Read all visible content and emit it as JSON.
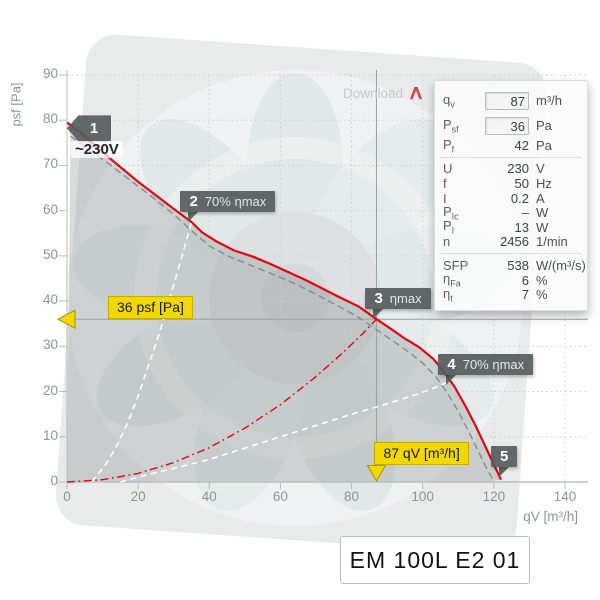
{
  "download": {
    "label": "Download"
  },
  "model_label": "EM 100L E2 01",
  "colors": {
    "curve_red": "#e30613",
    "reference_gray": "#8b8f8f",
    "handle_yellow": "#f2d802",
    "marker_tag_gray": "#565b5b",
    "pdf_icon_red": "#cc2229"
  },
  "panel": {
    "rows": [
      {
        "id": "qv",
        "label": "q",
        "sub": "v",
        "value": "87",
        "unit": "m³/h",
        "input": true,
        "sep_after": false
      },
      {
        "id": "psf",
        "label": "P",
        "sub": "sf",
        "value": "36",
        "unit": "Pa",
        "input": true,
        "sep_after": false
      },
      {
        "id": "pf",
        "label": "P",
        "sub": "f",
        "value": "42",
        "unit": "Pa",
        "input": false,
        "sep_after": true
      },
      {
        "id": "u",
        "label": "U",
        "sub": "",
        "value": "230",
        "unit": "V",
        "input": false,
        "sep_after": false
      },
      {
        "id": "f",
        "label": "f",
        "sub": "",
        "value": "50",
        "unit": "Hz",
        "input": false,
        "sep_after": false
      },
      {
        "id": "i",
        "label": "I",
        "sub": "",
        "value": "0.2",
        "unit": "A",
        "input": false,
        "sep_after": false
      },
      {
        "id": "pic",
        "label": "P",
        "sub": "Ic",
        "value": "–",
        "unit": "W",
        "input": false,
        "sep_after": false
      },
      {
        "id": "pi",
        "label": "P",
        "sub": "I",
        "value": "13",
        "unit": "W",
        "input": false,
        "sep_after": false
      },
      {
        "id": "n",
        "label": "n",
        "sub": "",
        "value": "2456",
        "unit": "1/min",
        "input": false,
        "sep_after": true
      },
      {
        "id": "sfp",
        "label": "SFP",
        "sub": "",
        "value": "538",
        "unit": "W/(m³/s)",
        "input": false,
        "sep_after": false
      },
      {
        "id": "etafa",
        "label": "η",
        "sub": "Fa",
        "value": "6",
        "unit": "%",
        "input": false,
        "sep_after": false
      },
      {
        "id": "etat",
        "label": "η",
        "sub": "t",
        "value": "7",
        "unit": "%",
        "input": false,
        "sep_after": false
      }
    ]
  },
  "chart_data": {
    "type": "line",
    "xlabel": "qV [m³/h]",
    "ylabel": "psf [Pa]",
    "xlim": [
      0,
      140
    ],
    "ylim": [
      0,
      90
    ],
    "x_ticks": [
      0,
      20,
      40,
      60,
      80,
      100,
      120,
      140
    ],
    "y_ticks": [
      0,
      10,
      20,
      30,
      40,
      50,
      60,
      70,
      80,
      90
    ],
    "grid": "dotted",
    "duty_point": {
      "qv": 87,
      "psf": 36
    },
    "series": [
      {
        "name": "fan-curve-230V",
        "style": "solid-red",
        "points": [
          [
            0,
            79.5
          ],
          [
            4,
            77.2
          ],
          [
            8,
            74.3
          ],
          [
            12,
            71.6
          ],
          [
            16,
            69
          ],
          [
            20,
            66.4
          ],
          [
            25,
            63.4
          ],
          [
            30,
            60.4
          ],
          [
            35,
            57.5
          ],
          [
            38,
            55.2
          ],
          [
            42,
            53.2
          ],
          [
            47,
            51.2
          ],
          [
            52,
            49.9
          ],
          [
            57,
            48.3
          ],
          [
            62,
            46.5
          ],
          [
            67,
            44.7
          ],
          [
            72,
            42.7
          ],
          [
            77,
            40.7
          ],
          [
            82,
            38.8
          ],
          [
            87,
            36
          ],
          [
            91,
            33.9
          ],
          [
            95,
            31.7
          ],
          [
            99,
            29.8
          ],
          [
            103,
            27.2
          ],
          [
            106,
            24.4
          ],
          [
            109,
            21
          ],
          [
            112,
            16.8
          ],
          [
            115,
            12.2
          ],
          [
            118,
            7.2
          ],
          [
            120,
            3.9
          ],
          [
            122,
            0.5
          ]
        ]
      },
      {
        "name": "fan-curve-reference",
        "style": "dashed-gray",
        "points": [
          [
            1,
            76.5
          ],
          [
            6,
            73.6
          ],
          [
            12,
            70.2
          ],
          [
            18,
            66.6
          ],
          [
            24,
            63
          ],
          [
            30,
            59.2
          ],
          [
            35,
            55.6
          ],
          [
            40,
            52.2
          ],
          [
            46,
            49.7
          ],
          [
            52,
            47.8
          ],
          [
            58,
            45.9
          ],
          [
            64,
            43.9
          ],
          [
            70,
            41.5
          ],
          [
            76,
            39
          ],
          [
            82,
            36.4
          ],
          [
            87,
            33.7
          ],
          [
            92,
            31
          ],
          [
            96,
            28.8
          ],
          [
            100,
            26.3
          ],
          [
            104,
            23
          ],
          [
            107,
            19.6
          ],
          [
            110,
            15.6
          ],
          [
            113,
            11.1
          ],
          [
            116,
            6.2
          ],
          [
            118.5,
            2.2
          ],
          [
            120,
            0.3
          ]
        ]
      },
      {
        "name": "system-curve",
        "style": "dashdot-red",
        "points": [
          [
            0,
            0
          ],
          [
            10,
            0.5
          ],
          [
            20,
            1.9
          ],
          [
            30,
            4.3
          ],
          [
            40,
            7.6
          ],
          [
            50,
            11.9
          ],
          [
            60,
            17.1
          ],
          [
            70,
            23.3
          ],
          [
            78,
            28.9
          ],
          [
            83,
            32.7
          ],
          [
            87,
            36
          ]
        ]
      },
      {
        "name": "eta-70-boundary-left",
        "style": "dashed-white",
        "points": [
          [
            7,
            0
          ],
          [
            11,
            4
          ],
          [
            14,
            8
          ],
          [
            17,
            13
          ],
          [
            20,
            19
          ],
          [
            23,
            26
          ],
          [
            26,
            33
          ],
          [
            29,
            41
          ],
          [
            32,
            49
          ],
          [
            35,
            57.5
          ]
        ]
      },
      {
        "name": "eta-70-boundary-right",
        "style": "dashed-white",
        "points": [
          [
            15,
            0
          ],
          [
            22,
            1.5
          ],
          [
            30,
            3
          ],
          [
            40,
            5
          ],
          [
            50,
            7.5
          ],
          [
            60,
            10
          ],
          [
            70,
            12.5
          ],
          [
            80,
            15
          ],
          [
            90,
            17.3
          ],
          [
            98,
            19.3
          ],
          [
            104,
            21
          ],
          [
            107.5,
            22.3
          ]
        ]
      }
    ],
    "markers": [
      {
        "num": "1",
        "text": "~230V",
        "q": 0,
        "p": 79.3,
        "type": "left"
      },
      {
        "num": "2",
        "text": "70% ηmax",
        "q": 35,
        "p": 57.5,
        "type": "down"
      },
      {
        "num": "3",
        "text": "ηmax",
        "q": 87,
        "p": 36,
        "type": "down"
      },
      {
        "num": "4",
        "text": "70% ηmax",
        "q": 107.5,
        "p": 21.5,
        "type": "down"
      },
      {
        "num": "5",
        "text": "",
        "q": 122.3,
        "p": 1,
        "type": "down"
      }
    ],
    "annotations": [
      {
        "text": "36 psf [Pa]",
        "kind": "psf"
      },
      {
        "text": "87 qV [m³/h]",
        "kind": "qv"
      }
    ]
  }
}
